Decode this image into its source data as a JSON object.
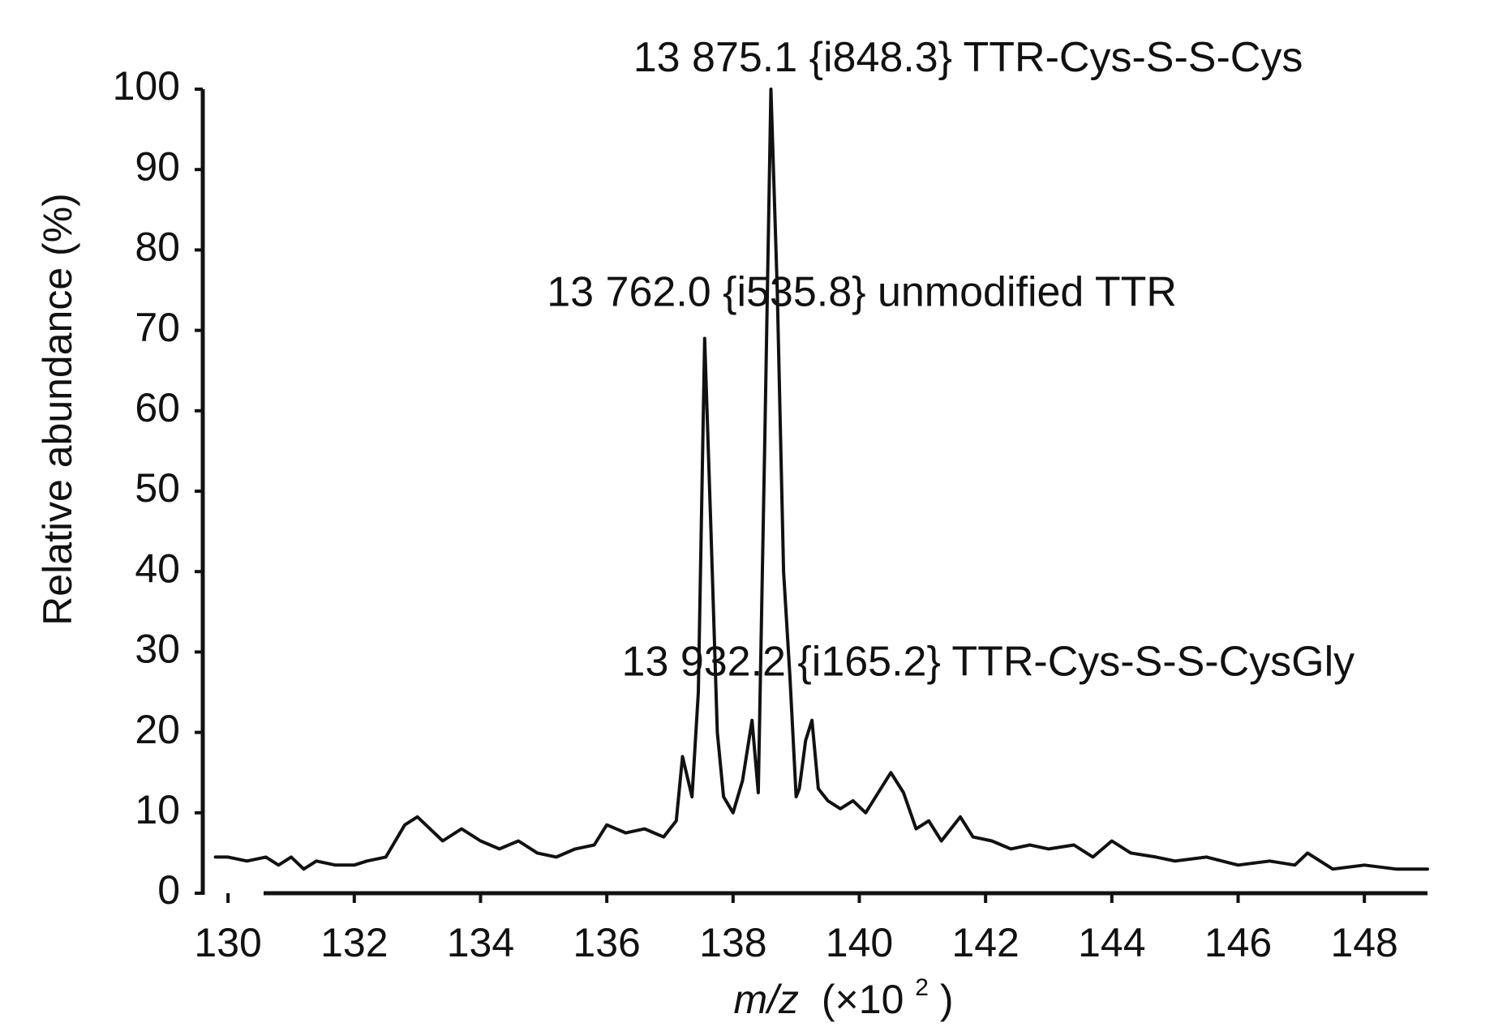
{
  "chart_data": {
    "type": "line",
    "title": "",
    "xlabel": "m/z (×10²)",
    "xlabel_parts": {
      "italic": "m/z",
      "rest": "(×10",
      "sup": "2",
      "close": ")"
    },
    "ylabel": "Relative abundance (%)",
    "xlim": [
      129.6,
      149.0
    ],
    "ylim": [
      0,
      100
    ],
    "x_ticks": [
      130,
      132,
      134,
      136,
      138,
      140,
      142,
      144,
      146,
      148
    ],
    "y_ticks": [
      0,
      10,
      20,
      30,
      40,
      50,
      60,
      70,
      80,
      90,
      100
    ],
    "grid": false,
    "legend": "none",
    "line_color": "#111111",
    "series": [
      {
        "x": [
          129.8,
          130.0,
          130.3,
          130.6,
          130.8,
          131.0,
          131.2,
          131.4,
          131.7,
          132.0,
          132.2,
          132.5,
          132.8,
          133.0,
          133.2,
          133.4,
          133.7,
          134.0,
          134.3,
          134.6,
          134.9,
          135.2,
          135.5,
          135.8,
          136.0,
          136.3,
          136.6,
          136.9,
          137.1,
          137.2,
          137.35,
          137.45,
          137.55,
          137.65,
          137.75,
          137.85,
          138.0,
          138.15,
          138.3,
          138.4,
          138.5,
          138.6,
          138.7,
          138.8,
          138.9,
          139.0,
          139.05,
          139.15,
          139.25,
          139.35,
          139.5,
          139.7,
          139.9,
          140.1,
          140.3,
          140.5,
          140.7,
          140.9,
          141.1,
          141.3,
          141.6,
          141.8,
          142.1,
          142.4,
          142.7,
          143.0,
          143.4,
          143.7,
          144.0,
          144.3,
          144.7,
          145.0,
          145.5,
          146.0,
          146.5,
          146.9,
          147.1,
          147.5,
          148.0,
          148.5,
          149.0
        ],
        "y": [
          4.5,
          4.5,
          4.0,
          4.5,
          3.5,
          4.5,
          3.0,
          4.0,
          3.5,
          3.5,
          4.0,
          4.5,
          8.5,
          9.5,
          8.0,
          6.5,
          8.0,
          6.5,
          5.5,
          6.5,
          5.0,
          4.5,
          5.5,
          6.0,
          8.5,
          7.5,
          8.0,
          7.0,
          9.0,
          17.0,
          12.0,
          25.0,
          69.0,
          45.0,
          20.0,
          12.0,
          10.0,
          14.0,
          21.5,
          12.5,
          55.0,
          100.0,
          75.0,
          40.0,
          27.0,
          12.0,
          13.0,
          19.0,
          21.5,
          13.0,
          11.5,
          10.5,
          11.5,
          10.0,
          12.5,
          15.0,
          12.5,
          8.0,
          9.0,
          6.5,
          9.5,
          7.0,
          6.5,
          5.5,
          6.0,
          5.5,
          6.0,
          4.5,
          6.5,
          5.0,
          4.5,
          4.0,
          4.5,
          3.5,
          4.0,
          3.5,
          5.0,
          3.0,
          3.5,
          3.0,
          3.0
        ]
      }
    ],
    "annotations": [
      {
        "text": "13 875.1 {i848.3}  TTR-Cys-S-S-Cys",
        "x": 138.86,
        "y": 100
      },
      {
        "text": "13 762.0 {i535.8}  unmodified TTR",
        "x": 137.62,
        "y": 69
      },
      {
        "text": "13 932.2 {i165.2}  TTR-Cys-S-S-CysGly",
        "x": 139.32,
        "y": 21.5
      }
    ]
  }
}
